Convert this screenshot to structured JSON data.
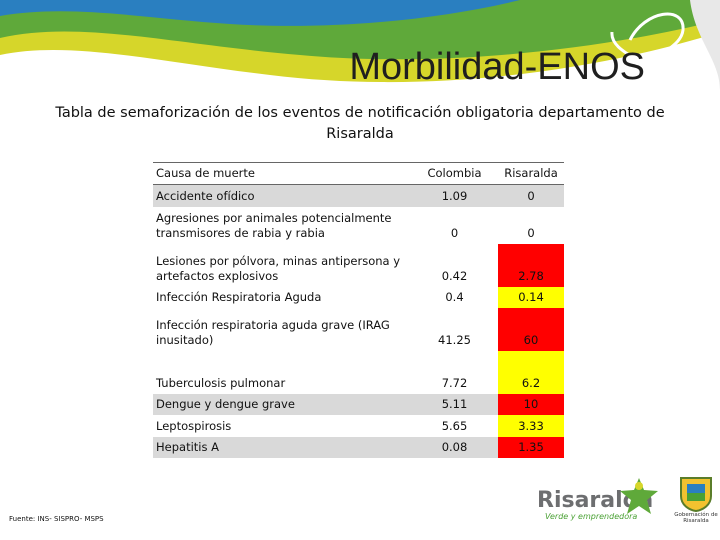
{
  "slide": {
    "title": "Morbilidad-ENOS",
    "subtitle": "Tabla de semaforización de los eventos de notificación obligatoria departamento de Risaralda",
    "footer": "Fuente: INS- SISPRO- MSPS"
  },
  "table": {
    "headers": {
      "cause": "Causa de muerte",
      "colombia": "Colombia",
      "risaralda": "Risaralda"
    },
    "rows": [
      {
        "cause": "Accidente ofídico",
        "colombia": "1.09",
        "risaralda": "0",
        "shade": true,
        "ris_color": "none"
      },
      {
        "cause": "Agresiones por animales potencialmente transmisores de rabia y rabia",
        "colombia": "0",
        "risaralda": "0",
        "shade": false,
        "ris_color": "none"
      },
      {
        "cause": "Lesiones por pólvora, minas antipersona y artefactos explosivos",
        "colombia": "0.42",
        "risaralda": "2.78",
        "shade": false,
        "ris_color": "red"
      },
      {
        "cause": "Infección Respiratoria Aguda",
        "colombia": "0.4",
        "risaralda": "0.14",
        "shade": false,
        "ris_color": "yellow"
      },
      {
        "cause": "Infección respiratoria aguda grave (IRAG inusitado)",
        "colombia": "41.25",
        "risaralda": "60",
        "shade": false,
        "ris_color": "red"
      },
      {
        "cause": "Tuberculosis pulmonar",
        "colombia": "7.72",
        "risaralda": "6.2",
        "shade": false,
        "ris_color": "yellow"
      },
      {
        "cause": "Dengue y dengue grave",
        "colombia": "5.11",
        "risaralda": "10",
        "shade": true,
        "ris_color": "red"
      },
      {
        "cause": "Leptospirosis",
        "colombia": "5.65",
        "risaralda": "3.33",
        "shade": false,
        "ris_color": "yellow"
      },
      {
        "cause": "Hepatitis A",
        "colombia": "0.08",
        "risaralda": "1.35",
        "shade": true,
        "ris_color": "red"
      }
    ]
  },
  "logo": {
    "brand": "Risaralda",
    "tagline": "Verde y emprendedora",
    "gov_label": "Gobernación de Risaralda"
  },
  "colors": {
    "banner_green": "#5fa93a",
    "banner_yellow": "#d6d62a",
    "banner_blue": "#2a7fc0",
    "status_red": "#ff0000",
    "status_yellow": "#ffff00",
    "row_shade": "#d9d9d9"
  }
}
